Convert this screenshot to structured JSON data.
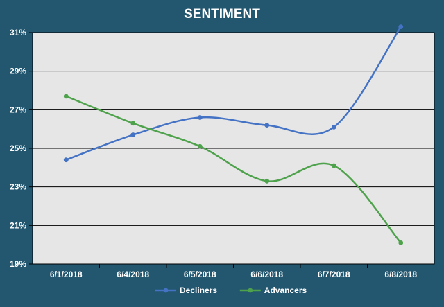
{
  "chart_data": {
    "type": "line",
    "title": "SENTIMENT",
    "categories": [
      "6/1/2018",
      "6/4/2018",
      "6/5/2018",
      "6/6/2018",
      "6/7/2018",
      "6/8/2018"
    ],
    "series": [
      {
        "name": "Decliners",
        "values": [
          24.4,
          25.7,
          26.6,
          26.2,
          26.1,
          31.3
        ],
        "color": "#4472c4"
      },
      {
        "name": "Advancers",
        "values": [
          27.7,
          26.3,
          25.1,
          23.3,
          24.1,
          20.1
        ],
        "color": "#4ea24b"
      }
    ],
    "ylim": [
      19,
      31
    ],
    "yticks": [
      19,
      21,
      23,
      25,
      27,
      29,
      31
    ],
    "ytick_labels": [
      "19%",
      "21%",
      "23%",
      "25%",
      "27%",
      "29%",
      "31%"
    ],
    "grid": true,
    "legend_position": "bottom",
    "smooth": true,
    "plot_background": "#e6e6e6",
    "frame_background": "#23566f"
  }
}
